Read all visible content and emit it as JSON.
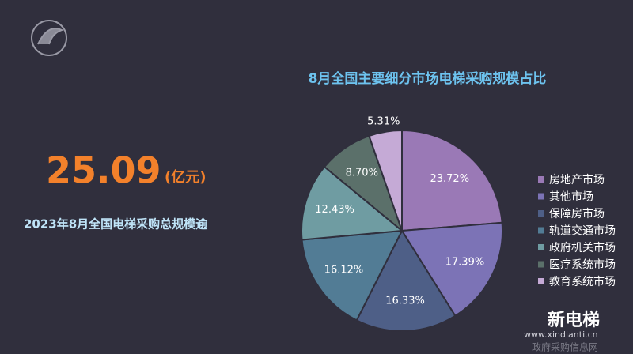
{
  "chart_data": {
    "type": "pie",
    "title": "8月全国主要细分市场电梯采购规模占比",
    "categories": [
      "房地产市场",
      "其他市场",
      "保障房市场",
      "轨道交通市场",
      "政府机关市场",
      "医疗系统市场",
      "教育系统市场"
    ],
    "values": [
      23.72,
      17.39,
      16.33,
      16.12,
      12.43,
      8.7,
      5.31
    ],
    "value_labels": [
      "23.72%",
      "17.39%",
      "16.33%",
      "16.12%",
      "12.43%",
      "8.70%",
      "5.31%"
    ],
    "colors": [
      "#9a79b6",
      "#7c73b6",
      "#4e5f87",
      "#527c95",
      "#6f9ca2",
      "#5b706a",
      "#c5aad6"
    ],
    "legend": "right"
  },
  "summary": {
    "value": "25.09",
    "unit": "(亿元)",
    "caption": "2023年8月全国电梯采购总规模逾"
  },
  "watermarks": {
    "brand": "新电梯",
    "url": "www.xindianti.cn",
    "source": "政府采购信息网"
  }
}
